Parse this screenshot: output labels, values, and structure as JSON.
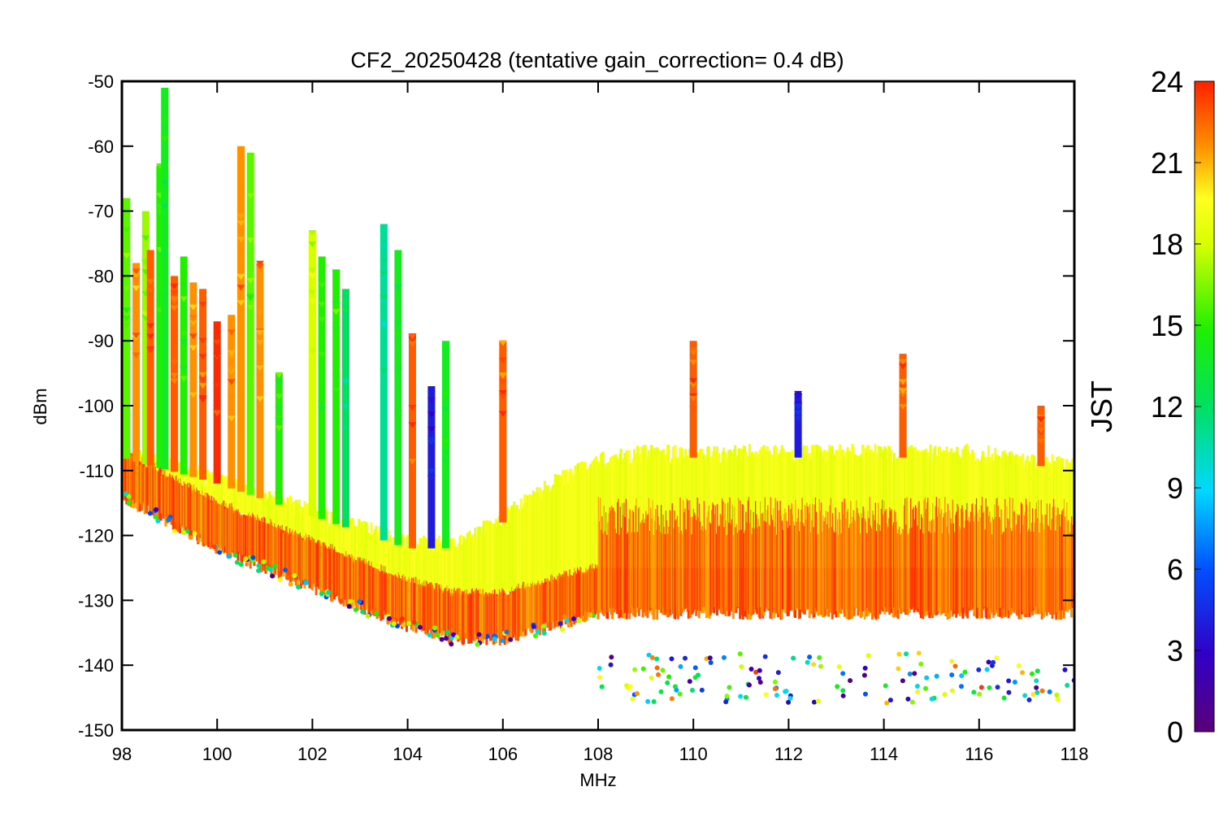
{
  "chart_data": {
    "type": "scatter",
    "title": "CF2_20250428 (tentative gain_correction=  0.4 dB)",
    "xlabel": "MHz",
    "ylabel": "dBm",
    "xlim": [
      98,
      118
    ],
    "ylim": [
      -150,
      -50
    ],
    "x_ticks": [
      "98",
      "100",
      "102",
      "104",
      "106",
      "108",
      "110",
      "112",
      "114",
      "116",
      "118"
    ],
    "y_ticks": [
      "-50",
      "-60",
      "-70",
      "-80",
      "-90",
      "-100",
      "-110",
      "-120",
      "-130",
      "-140",
      "-150"
    ],
    "grid": false,
    "colorbar": {
      "label": "JST",
      "range": [
        0,
        24
      ],
      "ticks": [
        "24",
        "21",
        "18",
        "15",
        "12",
        "9",
        "6",
        "3",
        "0"
      ],
      "colormap": "rainbow"
    },
    "series": [
      {
        "description_role": "noise_floor",
        "jst": 22,
        "points": [
          [
            98,
            -110
          ],
          [
            99,
            -114
          ],
          [
            100,
            -118
          ],
          [
            101,
            -121
          ],
          [
            102,
            -124
          ],
          [
            103,
            -127
          ],
          [
            104,
            -130
          ],
          [
            105,
            -132
          ],
          [
            106,
            -132
          ],
          [
            107,
            -130
          ],
          [
            108,
            -128
          ],
          [
            109,
            -128
          ],
          [
            110,
            -128
          ],
          [
            112,
            -128
          ],
          [
            114,
            -128
          ],
          [
            116,
            -128
          ],
          [
            118,
            -128
          ]
        ]
      },
      {
        "description_role": "daytime_upper_envelope",
        "jst": 18,
        "points": [
          [
            98,
            -108
          ],
          [
            100,
            -112
          ],
          [
            102,
            -117
          ],
          [
            104,
            -122
          ],
          [
            105,
            -122
          ],
          [
            106,
            -118
          ],
          [
            107,
            -113
          ],
          [
            108,
            -109
          ],
          [
            109,
            -108
          ],
          [
            110,
            -108
          ],
          [
            112,
            -108
          ],
          [
            114,
            -108
          ],
          [
            116,
            -108
          ],
          [
            118,
            -110
          ]
        ]
      }
    ],
    "peaks": [
      {
        "x": 98.1,
        "y_top": -68,
        "jst": 16
      },
      {
        "x": 98.3,
        "y_top": -78,
        "jst": 22
      },
      {
        "x": 98.5,
        "y_top": -70,
        "jst": 17
      },
      {
        "x": 98.6,
        "y_top": -76,
        "jst": 23
      },
      {
        "x": 98.8,
        "y_top": -63,
        "jst": 15
      },
      {
        "x": 98.9,
        "y_top": -51,
        "jst": 14
      },
      {
        "x": 99.1,
        "y_top": -80,
        "jst": 23
      },
      {
        "x": 99.3,
        "y_top": -77,
        "jst": 15
      },
      {
        "x": 99.5,
        "y_top": -81,
        "jst": 22
      },
      {
        "x": 99.7,
        "y_top": -82,
        "jst": 23
      },
      {
        "x": 100.0,
        "y_top": -87,
        "jst": 24
      },
      {
        "x": 100.3,
        "y_top": -86,
        "jst": 22
      },
      {
        "x": 100.5,
        "y_top": -60,
        "jst": 22
      },
      {
        "x": 100.7,
        "y_top": -61,
        "jst": 16
      },
      {
        "x": 100.9,
        "y_top": -78,
        "jst": 22
      },
      {
        "x": 101.3,
        "y_top": -95,
        "jst": 15
      },
      {
        "x": 102.0,
        "y_top": -73,
        "jst": 18
      },
      {
        "x": 102.2,
        "y_top": -77,
        "jst": 15
      },
      {
        "x": 102.5,
        "y_top": -79,
        "jst": 15
      },
      {
        "x": 102.7,
        "y_top": -82,
        "jst": 12
      },
      {
        "x": 103.5,
        "y_top": -72,
        "jst": 11
      },
      {
        "x": 103.8,
        "y_top": -76,
        "jst": 14
      },
      {
        "x": 104.1,
        "y_top": -89,
        "jst": 23
      },
      {
        "x": 104.5,
        "y_top": -97,
        "jst": 4
      },
      {
        "x": 104.8,
        "y_top": -90,
        "jst": 14
      },
      {
        "x": 106.0,
        "y_top": -90,
        "jst": 23
      },
      {
        "x": 110.0,
        "y_top": -90,
        "jst": 23
      },
      {
        "x": 112.2,
        "y_top": -98,
        "jst": 4
      },
      {
        "x": 114.4,
        "y_top": -92,
        "jst": 23
      },
      {
        "x": 117.3,
        "y_top": -100,
        "jst": 23
      }
    ]
  }
}
